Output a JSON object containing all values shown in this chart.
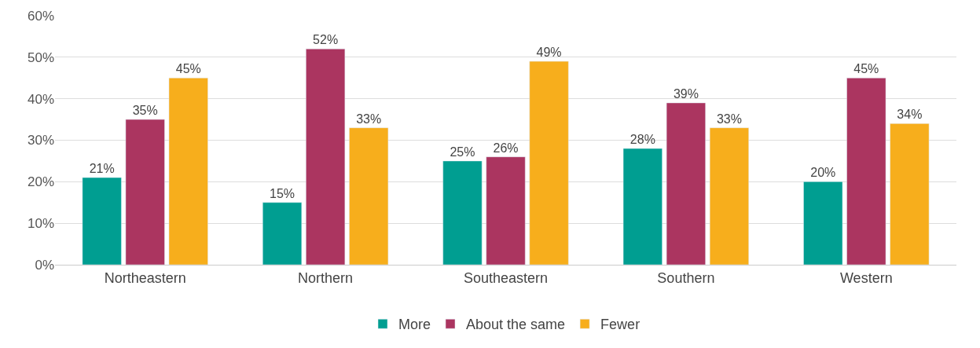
{
  "chart_data": {
    "type": "bar",
    "categories": [
      "Northeastern",
      "Northern",
      "Southeastern",
      "Southern",
      "Western"
    ],
    "series": [
      {
        "name": "More",
        "color": "#009e91",
        "values": [
          21,
          15,
          25,
          28,
          20
        ],
        "value_labels": [
          "21%",
          "15%",
          "25%",
          "28%",
          "20%"
        ]
      },
      {
        "name": "About the same",
        "color": "#ab3560",
        "values": [
          35,
          52,
          26,
          39,
          45
        ],
        "value_labels": [
          "35%",
          "52%",
          "26%",
          "39%",
          "45%"
        ]
      },
      {
        "name": "Fewer",
        "color": "#f7ae1c",
        "values": [
          45,
          33,
          49,
          33,
          34
        ],
        "value_labels": [
          "45%",
          "33%",
          "49%",
          "33%",
          "34%"
        ]
      }
    ],
    "ylim": [
      0,
      60
    ],
    "yticks": [
      {
        "value": 0,
        "label": "0%"
      },
      {
        "value": 10,
        "label": "10%"
      },
      {
        "value": 20,
        "label": "20%"
      },
      {
        "value": 30,
        "label": "30%"
      },
      {
        "value": 40,
        "label": "40%"
      },
      {
        "value": 50,
        "label": "50%"
      },
      {
        "value": 60,
        "label": "60%"
      }
    ],
    "grid": "y",
    "legend": "bottom"
  }
}
